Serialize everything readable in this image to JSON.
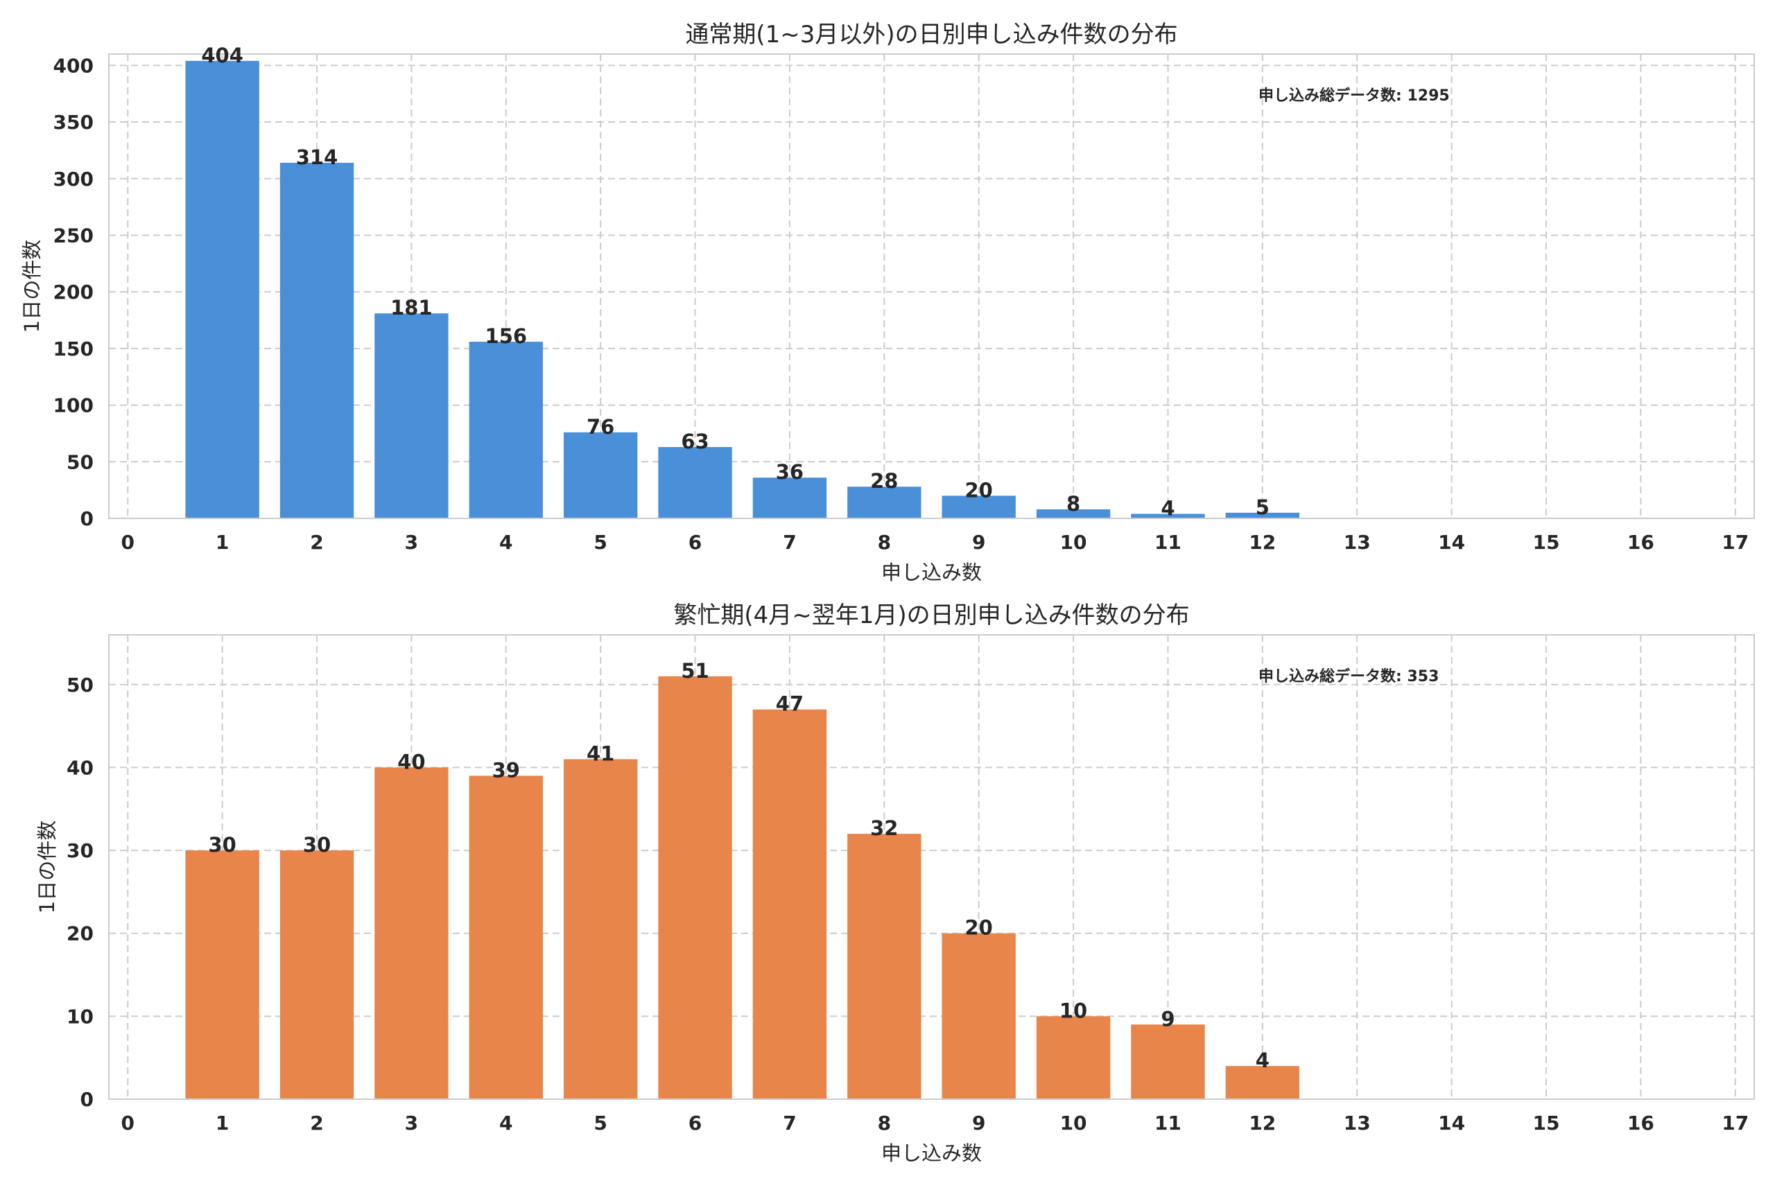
{
  "chart_data": [
    {
      "type": "bar",
      "title": "通常期(1~3月以外)の日別申し込み件数の分布",
      "xlabel": "申し込み数",
      "ylabel": "1日の件数",
      "x": [
        1,
        2,
        3,
        4,
        5,
        6,
        7,
        8,
        9,
        10,
        11,
        12
      ],
      "values": [
        404,
        314,
        181,
        156,
        76,
        63,
        36,
        28,
        20,
        8,
        4,
        5
      ],
      "xlim": [
        -0.2,
        17.2
      ],
      "xticks": [
        0,
        1,
        2,
        3,
        4,
        5,
        6,
        7,
        8,
        9,
        10,
        11,
        12,
        13,
        14,
        15,
        16,
        17
      ],
      "ylim": [
        0,
        410
      ],
      "yticks": [
        0,
        50,
        100,
        150,
        200,
        250,
        300,
        350,
        400
      ],
      "annotation": "申し込み総データ数: 1295",
      "grid": true,
      "color": "#4a90d9"
    },
    {
      "type": "bar",
      "title": "繁忙期(4月~翌年1月)の日別申し込み件数の分布",
      "xlabel": "申し込み数",
      "ylabel": "1日の件数",
      "x": [
        1,
        2,
        3,
        4,
        5,
        6,
        7,
        8,
        9,
        10,
        11,
        12
      ],
      "values": [
        30,
        30,
        40,
        39,
        41,
        51,
        47,
        32,
        20,
        10,
        9,
        4
      ],
      "xlim": [
        -0.2,
        17.2
      ],
      "xticks": [
        0,
        1,
        2,
        3,
        4,
        5,
        6,
        7,
        8,
        9,
        10,
        11,
        12,
        13,
        14,
        15,
        16,
        17
      ],
      "ylim": [
        0,
        56
      ],
      "yticks": [
        0,
        10,
        20,
        30,
        40,
        50
      ],
      "annotation": "申し込み総データ数: 353",
      "grid": true,
      "color": "#e8854a"
    }
  ]
}
